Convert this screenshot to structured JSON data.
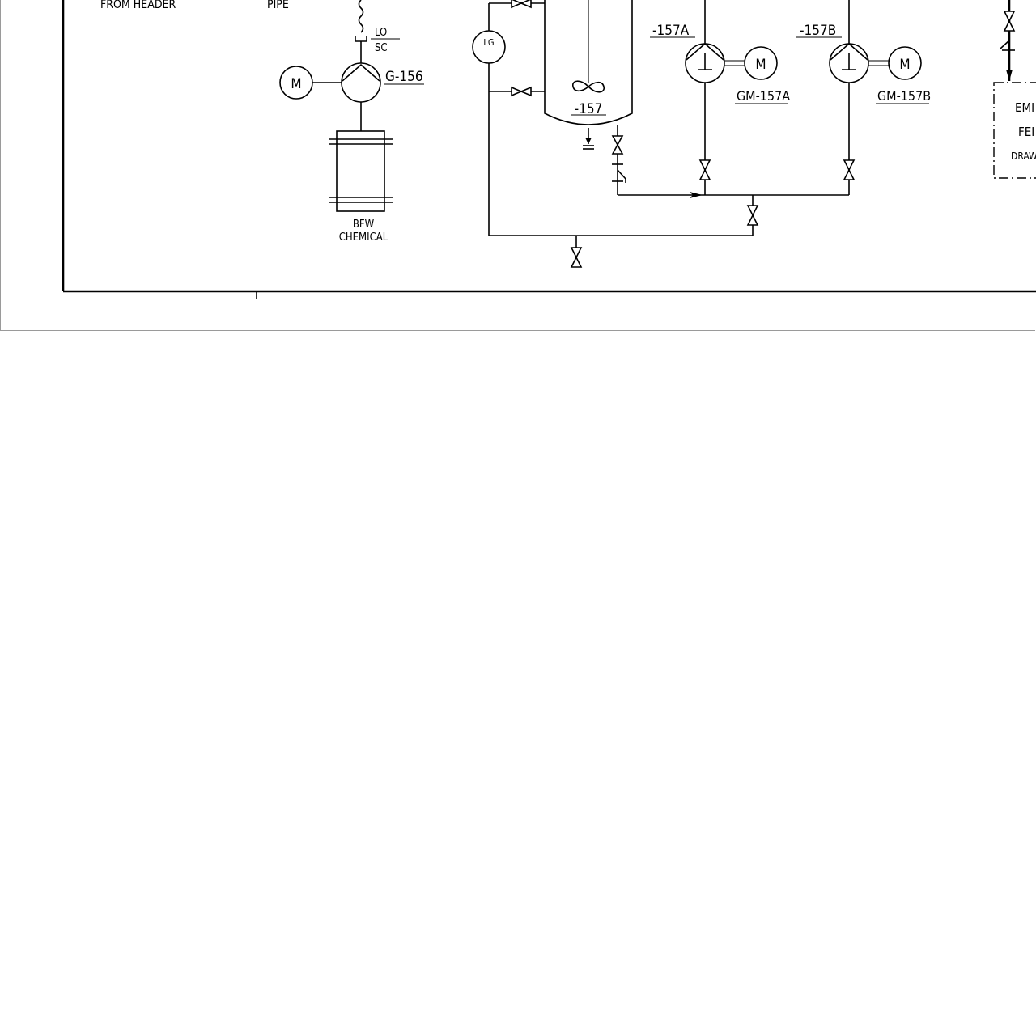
{
  "diagram": {
    "labels": {
      "from_header": "FROM  HEADER",
      "pipe": "PIPE",
      "lo": "LO",
      "sc": "SC",
      "motor_g156": "M",
      "pump_g156": "G-156",
      "bfw_line1": "BFW",
      "bfw_line2": "CHEMICAL",
      "level_gauge": "LG",
      "vessel": "-157",
      "pump_157a": "-157A",
      "pump_157b": "-157B",
      "motor_157a": "M",
      "motor_157b": "M",
      "motor_tag_157a": "GM-157A",
      "motor_tag_157b": "GM-157B",
      "box_line1": "EMI",
      "box_line2": "FEI",
      "box_line3": "DRAW"
    }
  }
}
